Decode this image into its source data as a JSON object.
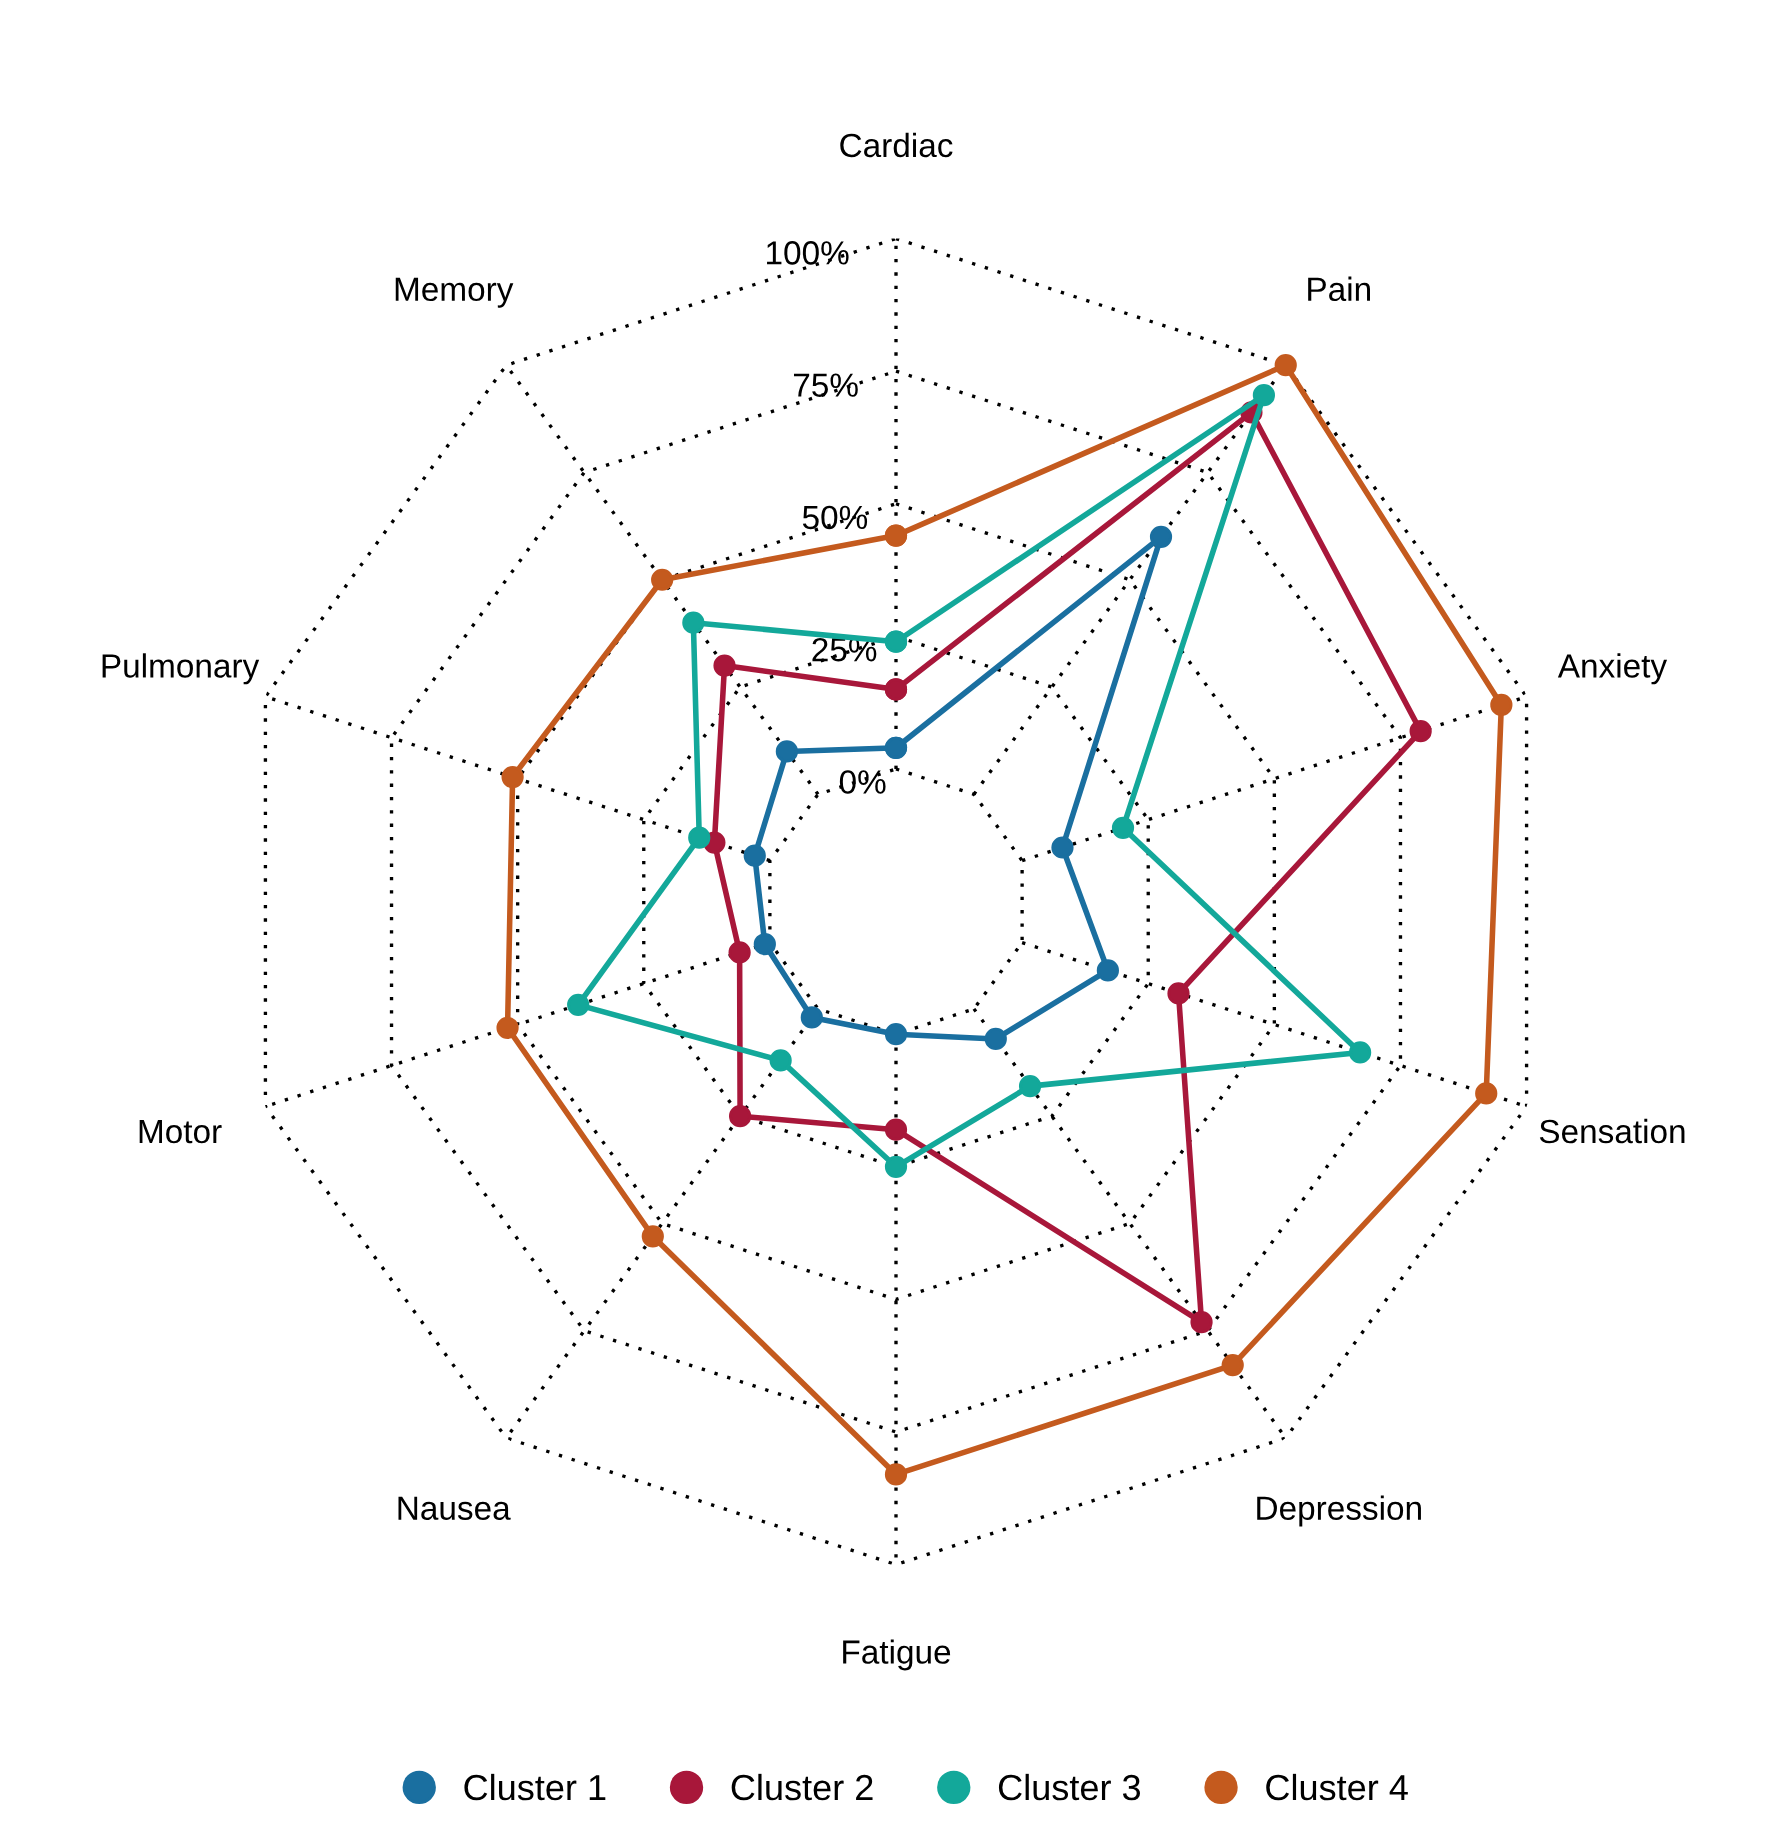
{
  "chart_data": {
    "type": "radar",
    "categories": [
      "Cardiac",
      "Pain",
      "Anxiety",
      "Sensation",
      "Depression",
      "Fatigue",
      "Nausea",
      "Motor",
      "Pulmonary",
      "Memory"
    ],
    "series": [
      {
        "name": "Cluster 1",
        "color": "#1a6fa0",
        "values": [
          4,
          60,
          8,
          17,
          7,
          0,
          2,
          1,
          3,
          10
        ]
      },
      {
        "name": "Cluster 2",
        "color": "#a8173a",
        "values": [
          15,
          89,
          79,
          31,
          73,
          18,
          25,
          6,
          11,
          30
        ]
      },
      {
        "name": "Cluster 3",
        "color": "#13a89a",
        "values": [
          24,
          93,
          20,
          67,
          18,
          25,
          12,
          38,
          14,
          40
        ]
      },
      {
        "name": "Cluster 4",
        "color": "#c45a1e",
        "values": [
          44,
          100,
          95,
          92,
          83,
          83,
          53,
          52,
          51,
          50
        ]
      }
    ],
    "ylim": [
      -25,
      100
    ],
    "yticks": [
      {
        "value": 0,
        "label": "0%"
      },
      {
        "value": 25,
        "label": "25%"
      },
      {
        "value": 50,
        "label": "50%"
      },
      {
        "value": 75,
        "label": "75%"
      },
      {
        "value": 100,
        "label": "100%"
      }
    ],
    "grid": true,
    "legend": "bottom",
    "marker": "circle",
    "line_style": "solid"
  }
}
